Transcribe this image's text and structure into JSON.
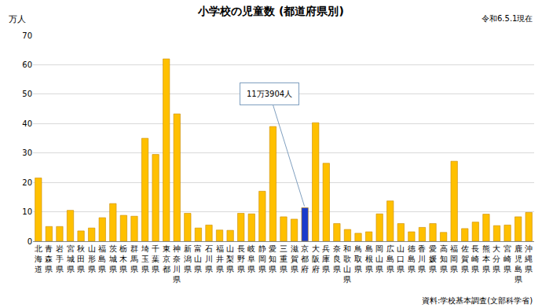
{
  "chart_data": {
    "type": "bar",
    "title": "小学校の児童数 (都道府県別)",
    "subtitle": "令和6.5.1現在",
    "y_label": "万人",
    "source": "資料:学校基本調査(文部科学省)",
    "annotations": [
      {
        "text": "11万3904人",
        "category": "京都府"
      }
    ],
    "categories": [
      "北海道",
      "青森県",
      "岩手県",
      "宮城県",
      "秋田県",
      "山形県",
      "福島県",
      "茨城県",
      "栃木県",
      "群馬県",
      "埼玉県",
      "千葉県",
      "東京都",
      "神奈川県",
      "新潟県",
      "富山県",
      "石川県",
      "福井県",
      "山梨県",
      "長野県",
      "岐阜県",
      "静岡県",
      "愛知県",
      "三重県",
      "滋賀県",
      "京都府",
      "大阪府",
      "兵庫県",
      "奈良県",
      "和歌山県",
      "鳥取県",
      "島根県",
      "岡山県",
      "広島県",
      "山口県",
      "徳島県",
      "香川県",
      "愛媛県",
      "高知県",
      "福岡県",
      "佐賀県",
      "長崎県",
      "熊本県",
      "大分県",
      "宮崎県",
      "鹿児島県",
      "沖縄県"
    ],
    "values": [
      21.5,
      5,
      5,
      10.5,
      3.5,
      4.5,
      8,
      12.8,
      8.8,
      8.5,
      35,
      29.5,
      62,
      43.3,
      9.5,
      4.5,
      5.5,
      3.8,
      3.7,
      9.5,
      9.3,
      17,
      39,
      8.3,
      7.5,
      11.3904,
      40.3,
      26.5,
      6,
      4,
      2.7,
      3.2,
      9.3,
      13.7,
      6,
      3.2,
      4.7,
      6,
      3,
      27.2,
      4.3,
      6.5,
      9.2,
      5.3,
      5.5,
      8.3,
      9.8
    ],
    "colors": [
      "#ffc000",
      "#ffc000",
      "#ffc000",
      "#ffc000",
      "#ffc000",
      "#ffc000",
      "#ffc000",
      "#ffc000",
      "#ffc000",
      "#ffc000",
      "#ffc000",
      "#ffc000",
      "#ffc000",
      "#ffc000",
      "#ffc000",
      "#ffc000",
      "#ffc000",
      "#ffc000",
      "#ffc000",
      "#ffc000",
      "#ffc000",
      "#ffc000",
      "#ffc000",
      "#ffc000",
      "#ffc000",
      "#1a3ccc",
      "#ffc000",
      "#ffc000",
      "#ffc000",
      "#ffc000",
      "#ffc000",
      "#ffc000",
      "#ffc000",
      "#ffc000",
      "#ffc000",
      "#ffc000",
      "#ffc000",
      "#ffc000",
      "#ffc000",
      "#ffc000",
      "#ffc000",
      "#ffc000",
      "#ffc000",
      "#ffc000",
      "#ffc000",
      "#ffc000",
      "#ffc000"
    ],
    "ylim": [
      0,
      70
    ],
    "yticks": [
      0,
      10,
      20,
      30,
      40,
      50,
      60,
      70
    ],
    "grid": true
  }
}
